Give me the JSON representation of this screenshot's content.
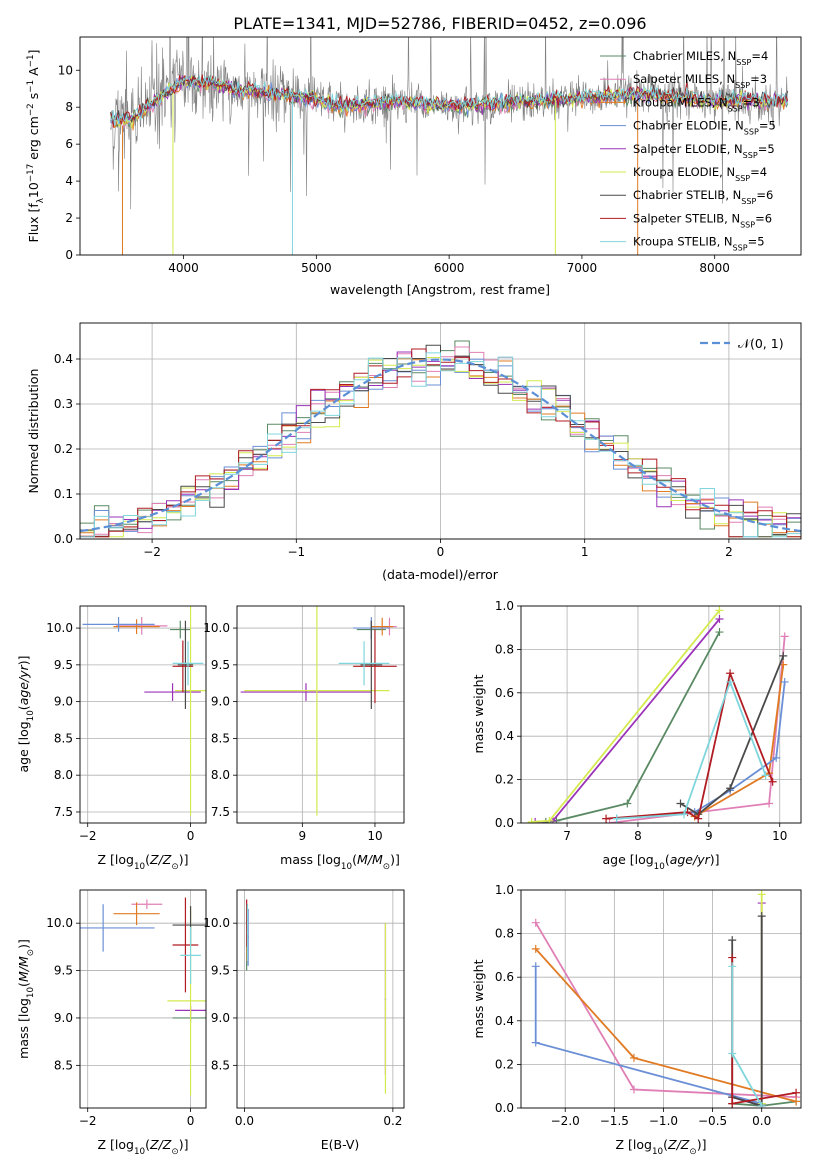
{
  "figure_title": "PLATE=1341, MJD=52786, FIBERID=0452, z=0.096",
  "legend_spectrum": [
    {
      "label": "Chabrier MILES, N",
      "sub": "SSP",
      "tail": "=4",
      "color": "#5a8a63"
    },
    {
      "label": "Salpeter MILES, N",
      "sub": "SSP",
      "tail": "=3",
      "color": "#e07fb5"
    },
    {
      "label": "Kroupa MILES, N",
      "sub": "SSP",
      "tail": "=3",
      "color": "#e07b24"
    },
    {
      "label": "Chabrier ELODIE, N",
      "sub": "SSP",
      "tail": "=5",
      "color": "#6a8fd6"
    },
    {
      "label": "Salpeter ELODIE, N",
      "sub": "SSP",
      "tail": "=5",
      "color": "#9a33b8"
    },
    {
      "label": "Kroupa ELODIE, N",
      "sub": "SSP",
      "tail": "=4",
      "color": "#d4ea4f"
    },
    {
      "label": "Chabrier STELIB, N",
      "sub": "SSP",
      "tail": "=6",
      "color": "#4a4a4a"
    },
    {
      "label": "Salpeter STELIB, N",
      "sub": "SSP",
      "tail": "=6",
      "color": "#b01c22"
    },
    {
      "label": "Kroupa STELIB, N",
      "sub": "SSP",
      "tail": "=5",
      "color": "#7fd6dc"
    }
  ],
  "legend_hist": {
    "label": "𝒩(0, 1)",
    "color": "#5b8fd6"
  },
  "chart_data": [
    {
      "id": "spectrum",
      "type": "line",
      "title": "PLATE=1341, MJD=52786, FIBERID=0452, z=0.096",
      "xlabel": "wavelength [Angstrom, rest frame]",
      "ylabel": "Flux [f_λ 10^-17 erg cm^-2 s^-1 A^-1]",
      "xlim": [
        3220,
        8650
      ],
      "ylim": [
        0,
        11.8
      ],
      "xticks": [
        4000,
        5000,
        6000,
        7000,
        8000
      ],
      "yticks": [
        0,
        2,
        4,
        6,
        8,
        10
      ],
      "grid": false,
      "legend": "top-right",
      "data_range": [
        3450,
        8550
      ],
      "model_continuum": [
        {
          "x": 3450,
          "y": 7.3
        },
        {
          "x": 3600,
          "y": 7.3
        },
        {
          "x": 3800,
          "y": 8.4
        },
        {
          "x": 4000,
          "y": 9.4
        },
        {
          "x": 4200,
          "y": 9.3
        },
        {
          "x": 4400,
          "y": 8.9
        },
        {
          "x": 4600,
          "y": 8.8
        },
        {
          "x": 4800,
          "y": 8.6
        },
        {
          "x": 5000,
          "y": 8.4
        },
        {
          "x": 5200,
          "y": 8.0
        },
        {
          "x": 5400,
          "y": 8.2
        },
        {
          "x": 5600,
          "y": 8.3
        },
        {
          "x": 5800,
          "y": 8.2
        },
        {
          "x": 6000,
          "y": 8.1
        },
        {
          "x": 6200,
          "y": 8.1
        },
        {
          "x": 6400,
          "y": 8.2
        },
        {
          "x": 6600,
          "y": 8.3
        },
        {
          "x": 6800,
          "y": 8.4
        },
        {
          "x": 7000,
          "y": 8.5
        },
        {
          "x": 7200,
          "y": 8.6
        },
        {
          "x": 7400,
          "y": 8.7
        },
        {
          "x": 7600,
          "y": 8.6
        },
        {
          "x": 7800,
          "y": 8.5
        },
        {
          "x": 8000,
          "y": 8.3
        },
        {
          "x": 8200,
          "y": 8.4
        },
        {
          "x": 8400,
          "y": 8.3
        },
        {
          "x": 8550,
          "y": 8.4
        }
      ]
    },
    {
      "id": "residual-histogram",
      "type": "step-histogram",
      "xlabel": "(data-model)/error",
      "ylabel": "Normed distribution",
      "xlim": [
        -2.5,
        2.5
      ],
      "ylim": [
        0,
        0.48
      ],
      "xticks": [
        -2,
        -1,
        0,
        1,
        2
      ],
      "yticks": [
        0.0,
        0.1,
        0.2,
        0.3,
        0.4
      ],
      "grid": true,
      "legend": "top-right",
      "bin_width": 0.1,
      "reference": {
        "type": "gaussian",
        "mean": 0,
        "sigma": 1
      }
    },
    {
      "id": "age-vs-Z",
      "type": "errorbar",
      "xlabel": "Z [log10(Z/Z⊙)]",
      "ylabel": "age [log10(age/yr)]",
      "xlim": [
        -2.15,
        0.3
      ],
      "ylim": [
        7.35,
        10.3
      ],
      "xticks": [
        -2,
        0
      ],
      "yticks": [
        7.5,
        8.0,
        8.5,
        9.0,
        9.5,
        10.0
      ],
      "grid": true,
      "points": [
        {
          "series": 0,
          "x": -0.2,
          "y": 9.98,
          "xerr": 0.2,
          "yerr": 0.12
        },
        {
          "series": 1,
          "x": -0.95,
          "y": 10.03,
          "xerr": 0.5,
          "yerr": 0.12
        },
        {
          "series": 2,
          "x": -1.05,
          "y": 10.02,
          "xerr": 0.45,
          "yerr": 0.1
        },
        {
          "series": 3,
          "x": -1.4,
          "y": 10.05,
          "xerr": 0.7,
          "yerr": 0.1
        },
        {
          "series": 4,
          "x": -0.35,
          "y": 9.13,
          "xerr": 0.55,
          "yerr": 0.12
        },
        {
          "series": 5,
          "x": 0.0,
          "y": 9.15,
          "xerr": 0.3,
          "yerr": 1.7
        },
        {
          "series": 6,
          "x": -0.1,
          "y": 9.5,
          "xerr": 0.15,
          "yerr": 0.6
        },
        {
          "series": 7,
          "x": -0.15,
          "y": 9.48,
          "xerr": 0.2,
          "yerr": 0.35
        },
        {
          "series": 8,
          "x": -0.05,
          "y": 9.52,
          "xerr": 0.3,
          "yerr": 0.3
        }
      ]
    },
    {
      "id": "age-vs-mass",
      "type": "errorbar",
      "xlabel": "mass [log10(M/M⊙)]",
      "ylabel": "",
      "xlim": [
        8.1,
        10.4
      ],
      "ylim": [
        7.35,
        10.3
      ],
      "xticks": [
        9,
        10
      ],
      "yticks": [
        7.5,
        8.0,
        8.5,
        9.0,
        9.5,
        10.0
      ],
      "grid": true,
      "points": [
        {
          "series": 0,
          "x": 9.95,
          "y": 9.98,
          "xerr": 0.2,
          "yerr": 0.12
        },
        {
          "series": 1,
          "x": 10.2,
          "y": 10.02,
          "xerr": 0.1,
          "yerr": 0.12
        },
        {
          "series": 2,
          "x": 10.1,
          "y": 10.02,
          "xerr": 0.15,
          "yerr": 0.12
        },
        {
          "series": 3,
          "x": 9.95,
          "y": 10.0,
          "xerr": 0.25,
          "yerr": 0.15
        },
        {
          "series": 4,
          "x": 9.05,
          "y": 9.13,
          "xerr": 0.9,
          "yerr": 0.12
        },
        {
          "series": 5,
          "x": 9.2,
          "y": 9.15,
          "xerr": 1.0,
          "yerr": 1.7
        },
        {
          "series": 6,
          "x": 9.95,
          "y": 9.5,
          "xerr": 0.15,
          "yerr": 0.6
        },
        {
          "series": 7,
          "x": 10.0,
          "y": 9.48,
          "xerr": 0.3,
          "yerr": 0.5
        },
        {
          "series": 8,
          "x": 9.85,
          "y": 9.52,
          "xerr": 0.35,
          "yerr": 0.3
        }
      ]
    },
    {
      "id": "mass-weight-vs-age",
      "type": "line",
      "xlabel": "age [log10(age/yr)]",
      "ylabel": "mass weight",
      "xlim": [
        6.35,
        10.3
      ],
      "ylim": [
        0,
        1.0
      ],
      "xticks": [
        7,
        8,
        9,
        10
      ],
      "yticks": [
        0.0,
        0.2,
        0.4,
        0.6,
        0.8,
        1.0
      ],
      "grid": true,
      "series": [
        {
          "index": 0,
          "x": [
            6.7,
            6.85,
            7.85,
            9.15
          ],
          "y": [
            0.005,
            0.01,
            0.09,
            0.88
          ]
        },
        {
          "index": 1,
          "x": [
            7.6,
            9.85,
            10.07
          ],
          "y": [
            0.0,
            0.09,
            0.86
          ]
        },
        {
          "index": 2,
          "x": [
            8.8,
            9.85,
            10.05
          ],
          "y": [
            0.03,
            0.23,
            0.73
          ]
        },
        {
          "index": 3,
          "x": [
            7.7,
            8.8,
            9.3,
            9.95,
            10.07
          ],
          "y": [
            0.02,
            0.05,
            0.15,
            0.3,
            0.65
          ]
        },
        {
          "index": 4,
          "x": [
            6.55,
            6.8,
            9.15
          ],
          "y": [
            0.005,
            0.01,
            0.94
          ]
        },
        {
          "index": 5,
          "x": [
            6.5,
            6.75,
            9.15
          ],
          "y": [
            0.005,
            0.01,
            0.98
          ]
        },
        {
          "index": 6,
          "x": [
            8.6,
            8.85,
            9.3,
            10.05
          ],
          "y": [
            0.09,
            0.04,
            0.16,
            0.77
          ]
        },
        {
          "index": 7,
          "x": [
            7.55,
            8.7,
            8.85,
            9.3,
            9.9
          ],
          "y": [
            0.02,
            0.05,
            0.02,
            0.69,
            0.19
          ]
        },
        {
          "index": 8,
          "x": [
            7.7,
            8.65,
            9.3,
            9.8
          ],
          "y": [
            0.02,
            0.04,
            0.65,
            0.22
          ]
        }
      ]
    },
    {
      "id": "mass-vs-Z",
      "type": "errorbar",
      "xlabel": "Z [log10(Z/Z⊙)]",
      "ylabel": "mass [log10(M/M⊙)]",
      "xlim": [
        -2.15,
        0.3
      ],
      "ylim": [
        8.05,
        10.35
      ],
      "xticks": [
        -2,
        0
      ],
      "yticks": [
        8.5,
        9.0,
        9.5,
        10.0
      ],
      "grid": true,
      "points": [
        {
          "series": 0,
          "x": 0.0,
          "y": 9.0,
          "xerr": 0.35,
          "yerr": 0.05
        },
        {
          "series": 1,
          "x": -0.85,
          "y": 10.2,
          "xerr": 0.3,
          "yerr": 0.05
        },
        {
          "series": 2,
          "x": -1.05,
          "y": 10.1,
          "xerr": 0.45,
          "yerr": 0.12
        },
        {
          "series": 3,
          "x": -1.7,
          "y": 9.95,
          "xerr": 1.0,
          "yerr": 0.25
        },
        {
          "series": 4,
          "x": 0.0,
          "y": 9.08,
          "xerr": 0.3,
          "yerr": 0.05
        },
        {
          "series": 5,
          "x": 0.0,
          "y": 9.18,
          "xerr": 0.45,
          "yerr": 1.0
        },
        {
          "series": 6,
          "x": 0.0,
          "y": 9.98,
          "xerr": 0.35,
          "yerr": 0.2
        },
        {
          "series": 7,
          "x": -0.1,
          "y": 9.77,
          "xerr": 0.25,
          "yerr": 0.5
        },
        {
          "series": 8,
          "x": 0.0,
          "y": 9.66,
          "xerr": 0.2,
          "yerr": 0.3
        }
      ]
    },
    {
      "id": "mass-vs-EBV",
      "type": "errorbar",
      "xlabel": "E(B-V)",
      "ylabel": "",
      "xlim": [
        -0.01,
        0.215
      ],
      "ylim": [
        8.05,
        10.35
      ],
      "xticks": [
        0.0,
        0.2
      ],
      "yticks": [
        8.5,
        9.0,
        9.5,
        10.0
      ],
      "grid": true,
      "points": [
        {
          "series": 0,
          "x": 0.003,
          "y": 9.8,
          "xerr": 0.001,
          "yerr": 0.3
        },
        {
          "series": 1,
          "x": 0.004,
          "y": 9.9,
          "xerr": 0.001,
          "yerr": 0.25
        },
        {
          "series": 2,
          "x": 0.003,
          "y": 9.9,
          "xerr": 0.001,
          "yerr": 0.3
        },
        {
          "series": 3,
          "x": 0.005,
          "y": 9.85,
          "xerr": 0.001,
          "yerr": 0.3
        },
        {
          "series": 4,
          "x": 0.19,
          "y": 9.2,
          "xerr": 0.001,
          "yerr": 0.8
        },
        {
          "series": 5,
          "x": 0.19,
          "y": 9.1,
          "xerr": 0.001,
          "yerr": 0.9
        },
        {
          "series": 6,
          "x": 0.004,
          "y": 9.9,
          "xerr": 0.001,
          "yerr": 0.3
        },
        {
          "series": 7,
          "x": 0.003,
          "y": 10.0,
          "xerr": 0.001,
          "yerr": 0.25
        },
        {
          "series": 8,
          "x": 0.004,
          "y": 9.9,
          "xerr": 0.001,
          "yerr": 0.3
        }
      ]
    },
    {
      "id": "mass-weight-vs-Z",
      "type": "line",
      "xlabel": "Z [log10(Z/Z⊙)]",
      "ylabel": "mass weight",
      "xlim": [
        -2.45,
        0.4
      ],
      "ylim": [
        0,
        1.0
      ],
      "xticks": [
        -2.0,
        -1.5,
        -1.0,
        -0.5,
        0.0
      ],
      "yticks": [
        0.0,
        0.2,
        0.4,
        0.6,
        0.8,
        1.0
      ],
      "grid": true,
      "series": [
        {
          "index": 0,
          "x": [
            -0.3,
            0.0,
            0.35
          ],
          "y": [
            0.02,
            0.01,
            0.03
          ]
        },
        {
          "index": 1,
          "x": [
            -2.3,
            -1.3,
            0.35
          ],
          "y": [
            0.85,
            0.085,
            0.05
          ]
        },
        {
          "index": 2,
          "x": [
            -2.3,
            -1.3,
            0.35
          ],
          "y": [
            0.73,
            0.23,
            0.03
          ]
        },
        {
          "index": 3,
          "x": [
            -2.3,
            -2.3,
            0.0
          ],
          "y": [
            0.65,
            0.3,
            0.02
          ]
        },
        {
          "index": 4,
          "x": [
            -0.3,
            0.0,
            0.0
          ],
          "y": [
            0.05,
            0.01,
            0.94
          ]
        },
        {
          "index": 5,
          "x": [
            0.0,
            0.0
          ],
          "y": [
            0.02,
            0.98
          ]
        },
        {
          "index": 6,
          "x": [
            -0.3,
            -0.3,
            0.0,
            0.0
          ],
          "y": [
            0.77,
            0.05,
            0.01,
            0.88
          ]
        },
        {
          "index": 7,
          "x": [
            -0.3,
            -0.3,
            0.35
          ],
          "y": [
            0.69,
            0.02,
            0.07
          ]
        },
        {
          "index": 8,
          "x": [
            -0.3,
            -0.3,
            0.0
          ],
          "y": [
            0.65,
            0.25,
            0.01
          ]
        }
      ]
    }
  ]
}
